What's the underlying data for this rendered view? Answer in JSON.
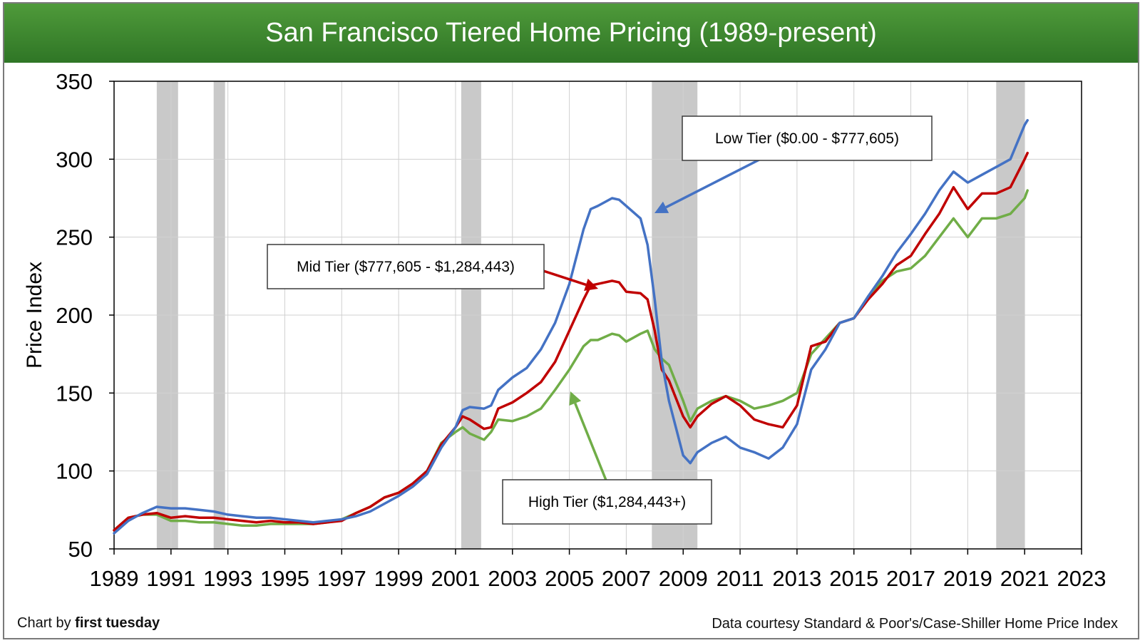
{
  "title": "San Francisco Tiered Home Pricing (1989-present)",
  "credit_prefix": "Chart by ",
  "credit_brand": "first tuesday",
  "source": "Data courtesy Standard & Poor's/Case-Shiller Home Price Index",
  "colors": {
    "low": "#4472c4",
    "mid": "#c00000",
    "high": "#70ad47",
    "recession": "#c9c9c9",
    "title_bar": "#3c8a2e"
  },
  "annotations": {
    "low": "Low Tier ($0.00 - $777,605)",
    "mid": "Mid Tier ($777,605 - $1,284,443)",
    "high": "High Tier ($1,284,443+)"
  },
  "chart_data": {
    "type": "line",
    "title": "San Francisco Tiered Home Pricing (1989-present)",
    "xlabel": "",
    "ylabel": "Price Index",
    "xlim": [
      1989,
      2023
    ],
    "ylim": [
      50,
      350
    ],
    "x_ticks": [
      1989,
      1991,
      1993,
      1995,
      1997,
      1999,
      2001,
      2003,
      2005,
      2007,
      2009,
      2011,
      2013,
      2015,
      2017,
      2019,
      2021,
      2023
    ],
    "y_ticks": [
      50,
      100,
      150,
      200,
      250,
      300,
      350
    ],
    "grid": true,
    "recessions": [
      [
        1990.5,
        1991.25
      ],
      [
        1992.5,
        1992.9
      ],
      [
        2001.2,
        2001.9
      ],
      [
        2007.9,
        2009.5
      ],
      [
        2020.0,
        2021.0
      ]
    ],
    "series": [
      {
        "name": "Low Tier ($0.00 - $777,605)",
        "points": [
          [
            1989.0,
            60
          ],
          [
            1989.5,
            68
          ],
          [
            1990.0,
            73
          ],
          [
            1990.5,
            77
          ],
          [
            1991.0,
            76
          ],
          [
            1991.5,
            76
          ],
          [
            1992.0,
            75
          ],
          [
            1992.5,
            74
          ],
          [
            1993.0,
            72
          ],
          [
            1993.5,
            71
          ],
          [
            1994.0,
            70
          ],
          [
            1994.5,
            70
          ],
          [
            1995.0,
            69
          ],
          [
            1995.5,
            68
          ],
          [
            1996.0,
            67
          ],
          [
            1996.5,
            68
          ],
          [
            1997.0,
            69
          ],
          [
            1997.5,
            71
          ],
          [
            1998.0,
            74
          ],
          [
            1998.5,
            79
          ],
          [
            1999.0,
            84
          ],
          [
            1999.5,
            90
          ],
          [
            2000.0,
            98
          ],
          [
            2000.5,
            115
          ],
          [
            2001.0,
            128
          ],
          [
            2001.25,
            139
          ],
          [
            2001.5,
            141
          ],
          [
            2002.0,
            140
          ],
          [
            2002.25,
            142
          ],
          [
            2002.5,
            152
          ],
          [
            2003.0,
            160
          ],
          [
            2003.5,
            166
          ],
          [
            2004.0,
            178
          ],
          [
            2004.5,
            195
          ],
          [
            2005.0,
            220
          ],
          [
            2005.5,
            255
          ],
          [
            2005.75,
            268
          ],
          [
            2006.0,
            270
          ],
          [
            2006.5,
            275
          ],
          [
            2006.75,
            274
          ],
          [
            2007.0,
            270
          ],
          [
            2007.5,
            262
          ],
          [
            2007.75,
            245
          ],
          [
            2008.0,
            210
          ],
          [
            2008.25,
            170
          ],
          [
            2008.5,
            145
          ],
          [
            2009.0,
            110
          ],
          [
            2009.25,
            105
          ],
          [
            2009.5,
            112
          ],
          [
            2010.0,
            118
          ],
          [
            2010.5,
            122
          ],
          [
            2011.0,
            115
          ],
          [
            2011.5,
            112
          ],
          [
            2012.0,
            108
          ],
          [
            2012.5,
            115
          ],
          [
            2013.0,
            130
          ],
          [
            2013.5,
            165
          ],
          [
            2014.0,
            178
          ],
          [
            2014.5,
            195
          ],
          [
            2015.0,
            198
          ],
          [
            2015.5,
            212
          ],
          [
            2016.0,
            225
          ],
          [
            2016.5,
            240
          ],
          [
            2017.0,
            252
          ],
          [
            2017.5,
            265
          ],
          [
            2018.0,
            280
          ],
          [
            2018.5,
            292
          ],
          [
            2019.0,
            285
          ],
          [
            2019.5,
            290
          ],
          [
            2020.0,
            295
          ],
          [
            2020.5,
            300
          ],
          [
            2021.0,
            322
          ],
          [
            2021.1,
            325
          ]
        ]
      },
      {
        "name": "Mid Tier ($777,605 - $1,284,443)",
        "points": [
          [
            1989.0,
            62
          ],
          [
            1989.5,
            70
          ],
          [
            1990.0,
            72
          ],
          [
            1990.5,
            73
          ],
          [
            1991.0,
            70
          ],
          [
            1991.5,
            71
          ],
          [
            1992.0,
            70
          ],
          [
            1992.5,
            70
          ],
          [
            1993.0,
            69
          ],
          [
            1993.5,
            68
          ],
          [
            1994.0,
            67
          ],
          [
            1994.5,
            68
          ],
          [
            1995.0,
            67
          ],
          [
            1995.5,
            67
          ],
          [
            1996.0,
            66
          ],
          [
            1996.5,
            67
          ],
          [
            1997.0,
            68
          ],
          [
            1997.5,
            73
          ],
          [
            1998.0,
            77
          ],
          [
            1998.5,
            83
          ],
          [
            1999.0,
            86
          ],
          [
            1999.5,
            92
          ],
          [
            2000.0,
            100
          ],
          [
            2000.5,
            117
          ],
          [
            2001.0,
            128
          ],
          [
            2001.25,
            135
          ],
          [
            2001.5,
            133
          ],
          [
            2002.0,
            127
          ],
          [
            2002.25,
            128
          ],
          [
            2002.5,
            140
          ],
          [
            2003.0,
            144
          ],
          [
            2003.5,
            150
          ],
          [
            2004.0,
            157
          ],
          [
            2004.5,
            170
          ],
          [
            2005.0,
            190
          ],
          [
            2005.5,
            210
          ],
          [
            2005.75,
            219
          ],
          [
            2006.0,
            220
          ],
          [
            2006.5,
            222
          ],
          [
            2006.75,
            221
          ],
          [
            2007.0,
            215
          ],
          [
            2007.5,
            214
          ],
          [
            2007.75,
            210
          ],
          [
            2008.0,
            190
          ],
          [
            2008.25,
            165
          ],
          [
            2008.5,
            158
          ],
          [
            2009.0,
            135
          ],
          [
            2009.25,
            128
          ],
          [
            2009.5,
            135
          ],
          [
            2010.0,
            143
          ],
          [
            2010.5,
            148
          ],
          [
            2011.0,
            142
          ],
          [
            2011.5,
            133
          ],
          [
            2012.0,
            130
          ],
          [
            2012.5,
            128
          ],
          [
            2013.0,
            142
          ],
          [
            2013.5,
            180
          ],
          [
            2014.0,
            183
          ],
          [
            2014.5,
            195
          ],
          [
            2015.0,
            198
          ],
          [
            2015.5,
            210
          ],
          [
            2016.0,
            220
          ],
          [
            2016.5,
            232
          ],
          [
            2017.0,
            238
          ],
          [
            2017.5,
            252
          ],
          [
            2018.0,
            265
          ],
          [
            2018.5,
            282
          ],
          [
            2019.0,
            268
          ],
          [
            2019.5,
            278
          ],
          [
            2020.0,
            278
          ],
          [
            2020.5,
            282
          ],
          [
            2021.0,
            300
          ],
          [
            2021.1,
            304
          ]
        ]
      },
      {
        "name": "High Tier ($1,284,443+)",
        "points": [
          [
            1989.0,
            62
          ],
          [
            1989.5,
            70
          ],
          [
            1990.0,
            72
          ],
          [
            1990.5,
            72
          ],
          [
            1991.0,
            68
          ],
          [
            1991.5,
            68
          ],
          [
            1992.0,
            67
          ],
          [
            1992.5,
            67
          ],
          [
            1993.0,
            66
          ],
          [
            1993.5,
            65
          ],
          [
            1994.0,
            65
          ],
          [
            1994.5,
            66
          ],
          [
            1995.0,
            66
          ],
          [
            1995.5,
            66
          ],
          [
            1996.0,
            66
          ],
          [
            1996.5,
            67
          ],
          [
            1997.0,
            69
          ],
          [
            1997.5,
            73
          ],
          [
            1998.0,
            77
          ],
          [
            1998.5,
            83
          ],
          [
            1999.0,
            86
          ],
          [
            1999.5,
            92
          ],
          [
            2000.0,
            100
          ],
          [
            2000.5,
            118
          ],
          [
            2001.0,
            125
          ],
          [
            2001.25,
            128
          ],
          [
            2001.5,
            124
          ],
          [
            2002.0,
            120
          ],
          [
            2002.25,
            125
          ],
          [
            2002.5,
            133
          ],
          [
            2003.0,
            132
          ],
          [
            2003.5,
            135
          ],
          [
            2004.0,
            140
          ],
          [
            2004.5,
            152
          ],
          [
            2005.0,
            165
          ],
          [
            2005.5,
            180
          ],
          [
            2005.75,
            184
          ],
          [
            2006.0,
            184
          ],
          [
            2006.5,
            188
          ],
          [
            2006.75,
            187
          ],
          [
            2007.0,
            183
          ],
          [
            2007.5,
            188
          ],
          [
            2007.75,
            190
          ],
          [
            2008.0,
            178
          ],
          [
            2008.25,
            172
          ],
          [
            2008.5,
            168
          ],
          [
            2009.0,
            145
          ],
          [
            2009.25,
            132
          ],
          [
            2009.5,
            140
          ],
          [
            2010.0,
            145
          ],
          [
            2010.5,
            148
          ],
          [
            2011.0,
            145
          ],
          [
            2011.5,
            140
          ],
          [
            2012.0,
            142
          ],
          [
            2012.5,
            145
          ],
          [
            2013.0,
            150
          ],
          [
            2013.5,
            175
          ],
          [
            2014.0,
            185
          ],
          [
            2014.5,
            195
          ],
          [
            2015.0,
            198
          ],
          [
            2015.5,
            212
          ],
          [
            2016.0,
            222
          ],
          [
            2016.5,
            228
          ],
          [
            2017.0,
            230
          ],
          [
            2017.5,
            238
          ],
          [
            2018.0,
            250
          ],
          [
            2018.5,
            262
          ],
          [
            2019.0,
            250
          ],
          [
            2019.5,
            262
          ],
          [
            2020.0,
            262
          ],
          [
            2020.5,
            265
          ],
          [
            2021.0,
            275
          ],
          [
            2021.1,
            280
          ]
        ]
      }
    ]
  }
}
